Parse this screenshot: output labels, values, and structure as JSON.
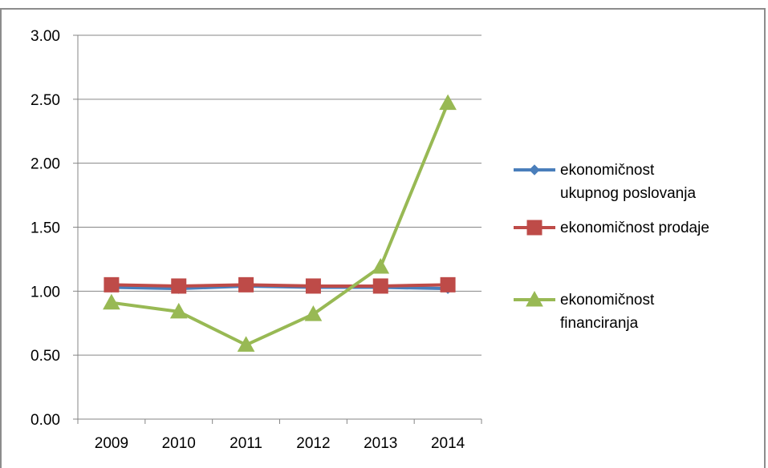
{
  "chart_data": {
    "type": "line",
    "categories": [
      "2009",
      "2010",
      "2011",
      "2012",
      "2013",
      "2014"
    ],
    "ylim": [
      0,
      3
    ],
    "y_ticks": [
      "0.00",
      "0.50",
      "1.00",
      "1.50",
      "2.00",
      "2.50",
      "3.00"
    ],
    "grid": true,
    "legend_position": "right",
    "series": [
      {
        "name": "ekonomičnost ukupnog poslovanja",
        "legend_lines": [
          "ekonomičnost",
          "ukupnog poslovanja"
        ],
        "values": [
          1.03,
          1.02,
          1.04,
          1.03,
          1.03,
          1.02
        ],
        "color": "#4a7ebb",
        "marker": "diamond"
      },
      {
        "name": "ekonomičnost prodaje",
        "legend_lines": [
          "ekonomičnost prodaje"
        ],
        "values": [
          1.05,
          1.04,
          1.05,
          1.04,
          1.04,
          1.05
        ],
        "color": "#be4b48",
        "marker": "square"
      },
      {
        "name": "ekonomičnost financiranja",
        "legend_lines": [
          "ekonomičnost",
          "financiranja"
        ],
        "values": [
          0.91,
          0.84,
          0.58,
          0.82,
          1.19,
          2.47
        ],
        "color": "#98b954",
        "marker": "triangle"
      }
    ],
    "colors": {
      "grid": "#868686",
      "axis": "#868686",
      "frame": "#8c8c8c"
    }
  }
}
